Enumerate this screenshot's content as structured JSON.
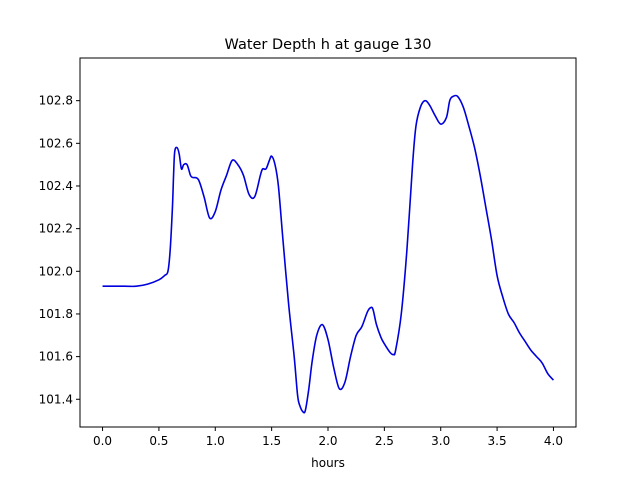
{
  "chart_data": {
    "type": "line",
    "title": "Water Depth h at gauge 130",
    "xlabel": "hours",
    "ylabel": "",
    "xlim": [
      -0.2,
      4.2
    ],
    "ylim": [
      101.27,
      103.0
    ],
    "xticks": [
      0.0,
      0.5,
      1.0,
      1.5,
      2.0,
      2.5,
      3.0,
      3.5,
      4.0
    ],
    "xtick_labels": [
      "0.0",
      "0.5",
      "1.0",
      "1.5",
      "2.0",
      "2.5",
      "3.0",
      "3.5",
      "4.0"
    ],
    "yticks": [
      101.4,
      101.6,
      101.8,
      102.0,
      102.2,
      102.4,
      102.6,
      102.8
    ],
    "ytick_labels": [
      "101.4",
      "101.6",
      "101.8",
      "102.0",
      "102.2",
      "102.4",
      "102.6",
      "102.8"
    ],
    "grid": false,
    "line_color": "#0000dd",
    "series": [
      {
        "name": "",
        "x": [
          0.0,
          0.1,
          0.2,
          0.3,
          0.4,
          0.5,
          0.55,
          0.58,
          0.6,
          0.62,
          0.63,
          0.64,
          0.66,
          0.68,
          0.7,
          0.72,
          0.75,
          0.78,
          0.8,
          0.85,
          0.9,
          0.95,
          1.0,
          1.05,
          1.1,
          1.15,
          1.2,
          1.25,
          1.3,
          1.35,
          1.4,
          1.42,
          1.45,
          1.48,
          1.5,
          1.53,
          1.56,
          1.6,
          1.65,
          1.7,
          1.73,
          1.75,
          1.78,
          1.8,
          1.83,
          1.86,
          1.9,
          1.95,
          2.0,
          2.05,
          2.1,
          2.15,
          2.2,
          2.25,
          2.3,
          2.35,
          2.38,
          2.4,
          2.43,
          2.47,
          2.5,
          2.55,
          2.58,
          2.6,
          2.65,
          2.7,
          2.75,
          2.78,
          2.82,
          2.86,
          2.9,
          2.95,
          3.0,
          3.05,
          3.08,
          3.11,
          3.15,
          3.2,
          3.25,
          3.3,
          3.35,
          3.4,
          3.45,
          3.5,
          3.55,
          3.6,
          3.65,
          3.7,
          3.75,
          3.8,
          3.85,
          3.9,
          3.95,
          4.0
        ],
        "y": [
          101.93,
          101.93,
          101.93,
          101.93,
          101.94,
          101.96,
          101.98,
          102.0,
          102.1,
          102.3,
          102.45,
          102.56,
          102.58,
          102.55,
          102.48,
          102.5,
          102.5,
          102.45,
          102.44,
          102.43,
          102.35,
          102.25,
          102.28,
          102.38,
          102.45,
          102.52,
          102.5,
          102.45,
          102.36,
          102.35,
          102.45,
          102.48,
          102.48,
          102.52,
          102.54,
          102.5,
          102.4,
          102.15,
          101.85,
          101.6,
          101.42,
          101.37,
          101.34,
          101.35,
          101.45,
          101.58,
          101.7,
          101.75,
          101.68,
          101.55,
          101.45,
          101.48,
          101.6,
          101.7,
          101.74,
          101.81,
          101.83,
          101.82,
          101.75,
          101.69,
          101.66,
          101.62,
          101.61,
          101.63,
          101.8,
          102.1,
          102.5,
          102.68,
          102.77,
          102.8,
          102.78,
          102.73,
          102.69,
          102.72,
          102.8,
          102.82,
          102.82,
          102.77,
          102.68,
          102.58,
          102.45,
          102.3,
          102.15,
          101.98,
          101.88,
          101.8,
          101.76,
          101.71,
          101.67,
          101.63,
          101.6,
          101.57,
          101.52,
          101.49
        ]
      }
    ]
  }
}
